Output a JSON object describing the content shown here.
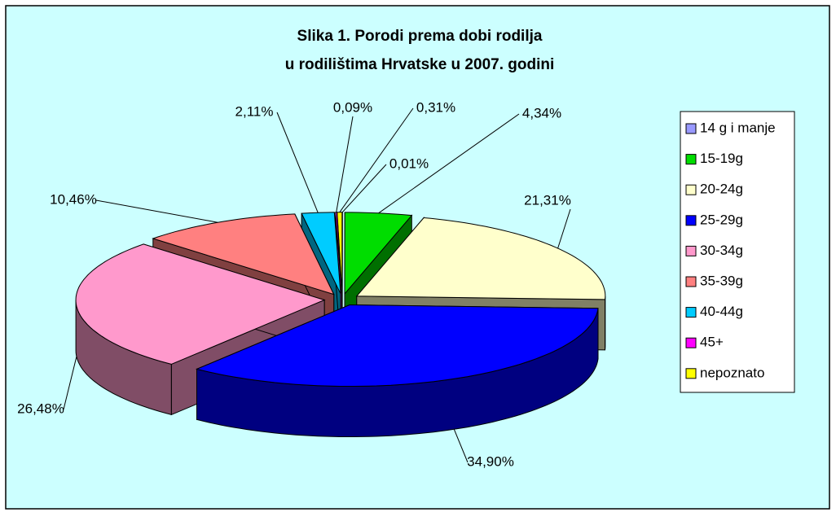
{
  "chart_data": {
    "type": "pie3d",
    "title": [
      "Slika 1.  Porodi prema dobi rodilja",
      "u rodilištima Hrvatske u 2007. godini"
    ],
    "categories": [
      "14 g i manje",
      "15-19g",
      "20-24g",
      "25-29g",
      "30-34g",
      "35-39g",
      "40-44g",
      "45+",
      "nepoznato"
    ],
    "values": [
      0.01,
      4.34,
      21.31,
      34.9,
      26.48,
      10.46,
      2.11,
      0.09,
      0.31
    ],
    "value_labels": [
      "0,01%",
      "4,34%",
      "21,31%",
      "34,90%",
      "26,48%",
      "10,46%",
      "2,11%",
      "0,09%",
      "0,31%"
    ],
    "colors": [
      "#9999ff",
      "#00dd00",
      "#ffffcc",
      "#0000ff",
      "#ff99cc",
      "#ff8080",
      "#00ccff",
      "#ff00ff",
      "#ffff00"
    ],
    "legend": "right"
  }
}
